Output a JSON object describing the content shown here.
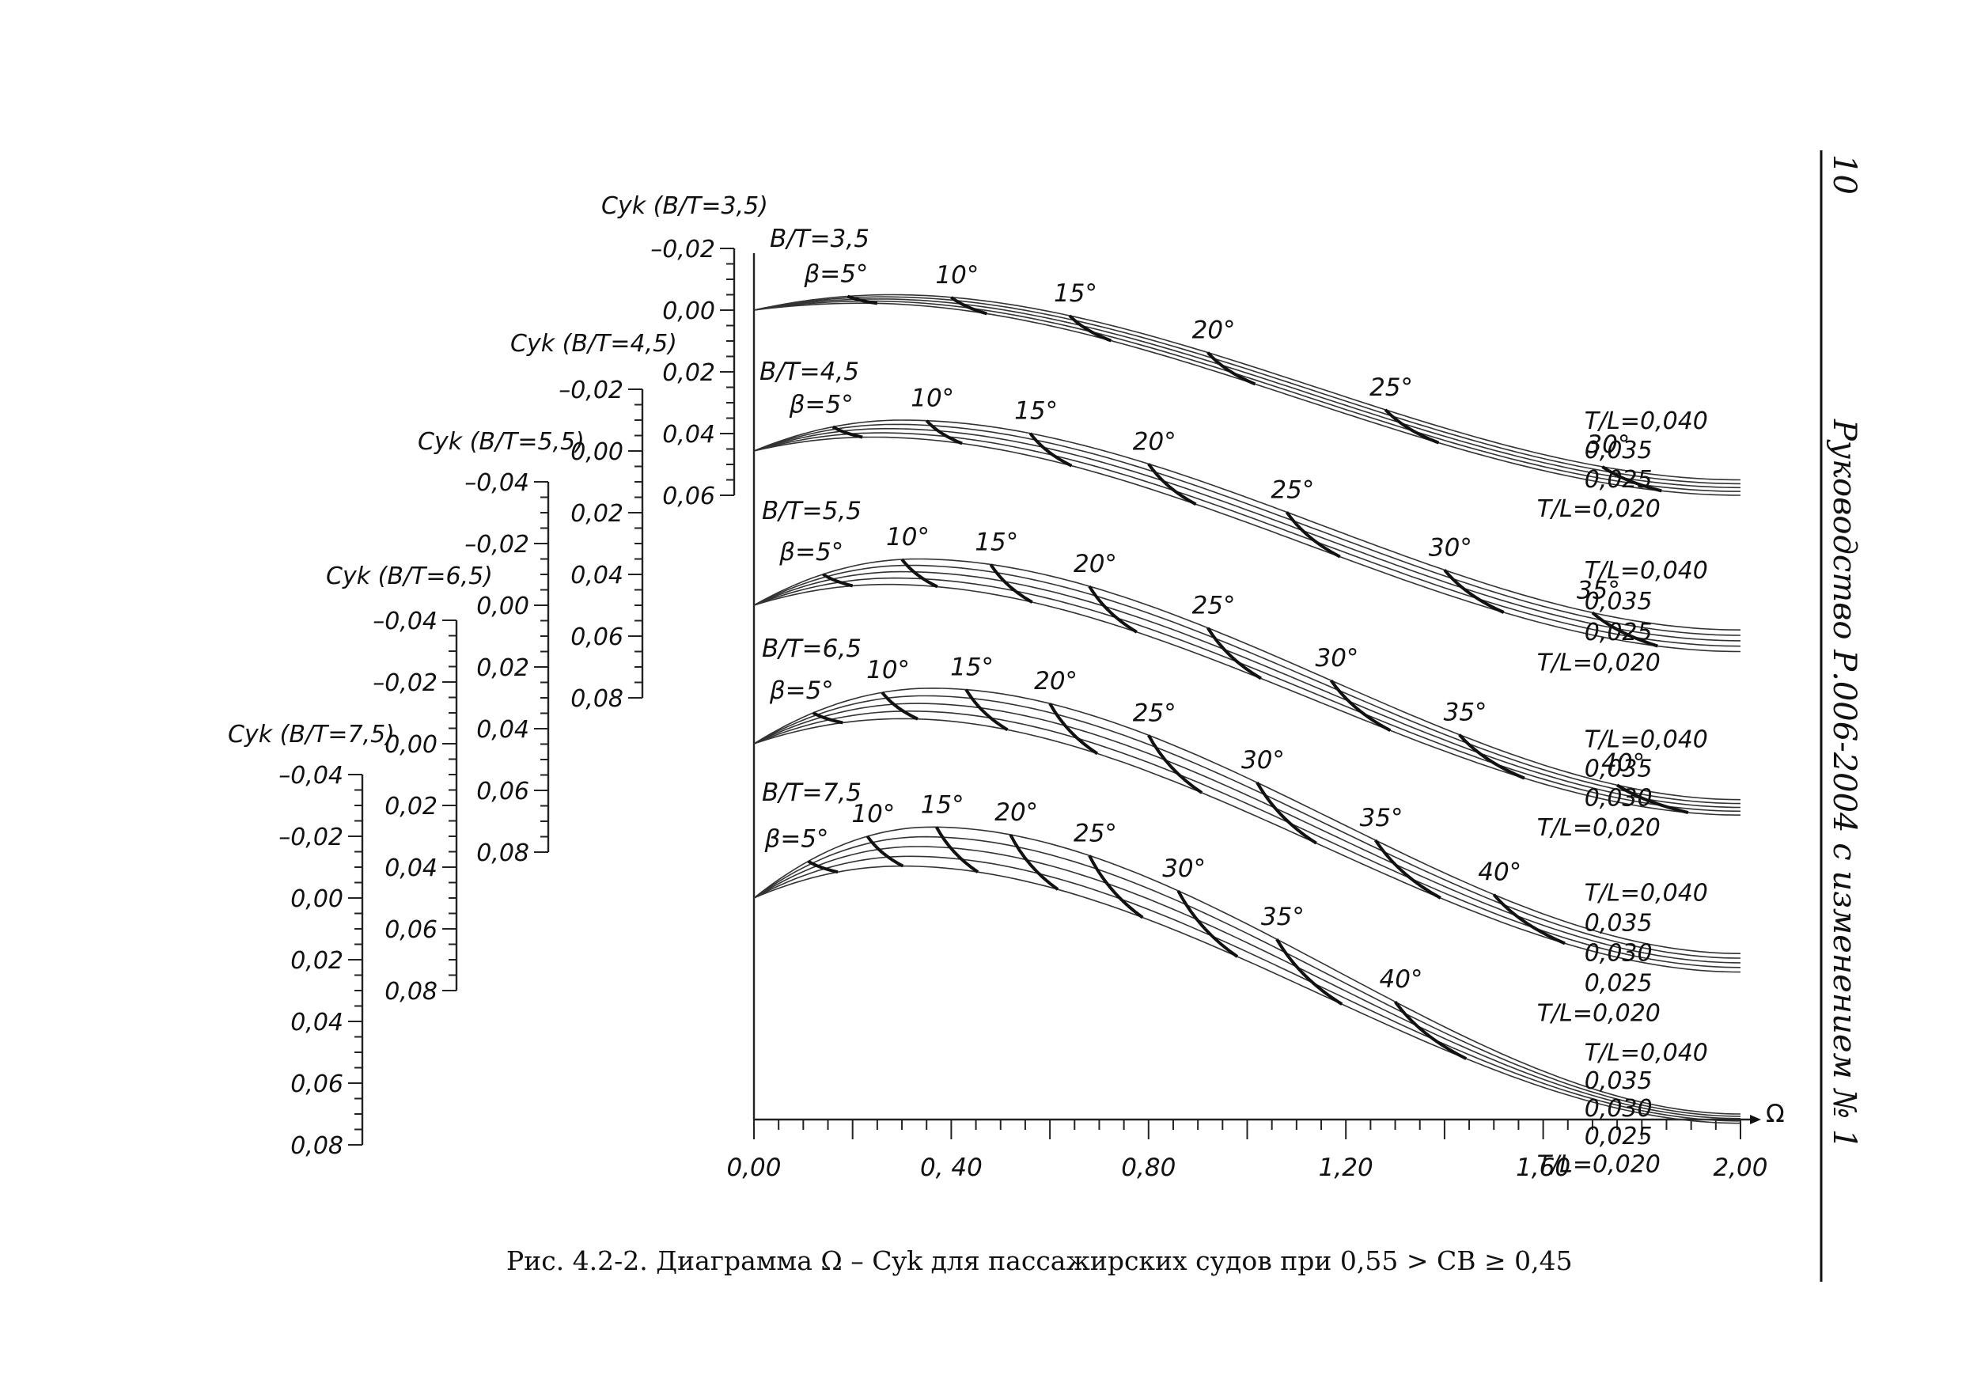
{
  "header": {
    "page_number": "10",
    "running_title": "Руководство Р.006-2004 с изменением № 1"
  },
  "caption": {
    "text": "Рис. 4.2-2. Диаграмма Ω –  Cyk для пассажирских судов при 0,55 > CB ≥ 0,45"
  },
  "chart_data": {
    "type": "line",
    "title": "",
    "xlabel": "Ω",
    "xlim": [
      0.0,
      2.0
    ],
    "x_ticks": [
      "0,00",
      "0, 40",
      "0,80",
      "1,20",
      "1,60",
      "2,00"
    ],
    "y_axes": [
      {
        "label": "Cyk (B/T=3,5)",
        "ticks": [
          "-0,02",
          "0,00",
          "0,02",
          "0,04",
          "0,06"
        ]
      },
      {
        "label": "Cyk (B/T=4,5)",
        "ticks": [
          "-0,02",
          "0,00",
          "0,02",
          "0,04",
          "0,06",
          "0,08"
        ]
      },
      {
        "label": "Cyk (B/T=5,5)",
        "ticks": [
          "-0,04",
          "-0,02",
          "0,00",
          "0,02",
          "0,04",
          "0,06",
          "0,08"
        ]
      },
      {
        "label": "Cyk (B/T=6,5)",
        "ticks": [
          "-0,04",
          "-0,02",
          "0,00",
          "0,02",
          "0,04",
          "0,06",
          "0,08"
        ]
      },
      {
        "label": "Cyk (B/T=7,5)",
        "ticks": [
          "-0,04",
          "-0,02",
          "0,00",
          "0,02",
          "0,04",
          "0,06",
          "0,08"
        ]
      }
    ],
    "groups": [
      {
        "bt_label": "B/T=3,5",
        "beta_prefix": "β=5°",
        "y_unit_offset": 0.0,
        "peak_x": 0.28,
        "peak_y": -0.005,
        "end_y_low": 0.055,
        "end_y_high": 0.06,
        "beta_x": [
          0.19,
          0.4,
          0.64,
          0.92,
          1.28,
          1.72
        ],
        "beta_labels": [
          "β=5°",
          "10°",
          "15°",
          "20°",
          "25°",
          "30°"
        ],
        "tl_labels": [
          "T/L=0,040",
          "0,035",
          "0,025",
          "T/L=0,020"
        ]
      },
      {
        "bt_label": "B/T=4,5",
        "beta_prefix": "β=5°",
        "y_unit_offset": 0.0,
        "peak_x": 0.3,
        "peak_y": -0.01,
        "end_y_low": 0.058,
        "end_y_high": 0.065,
        "beta_x": [
          0.16,
          0.35,
          0.56,
          0.8,
          1.08,
          1.4,
          1.7
        ],
        "beta_labels": [
          "β=5°",
          "10°",
          "15°",
          "20°",
          "25°",
          "30°",
          "35°"
        ],
        "tl_labels": [
          "T/L=0,040",
          "0,035",
          "0,025",
          "T/L=0,020"
        ]
      },
      {
        "bt_label": "B/T=5,5",
        "beta_prefix": "β=5°",
        "y_unit_offset": 0.0,
        "peak_x": 0.33,
        "peak_y": -0.015,
        "end_y_low": 0.063,
        "end_y_high": 0.068,
        "beta_x": [
          0.14,
          0.3,
          0.48,
          0.68,
          0.92,
          1.17,
          1.43,
          1.75
        ],
        "beta_labels": [
          "β=5°",
          "10°",
          "15°",
          "20°",
          "25°",
          "30°",
          "35°",
          "40°"
        ],
        "tl_labels": [
          "T/L=0,040",
          "0,035",
          "0,030",
          "T/L=0,020"
        ]
      },
      {
        "bt_label": "B/T=6,5",
        "beta_prefix": "β=5°",
        "y_unit_offset": 0.0,
        "peak_x": 0.36,
        "peak_y": -0.018,
        "end_y_low": 0.068,
        "end_y_high": 0.074,
        "beta_x": [
          0.12,
          0.26,
          0.43,
          0.6,
          0.8,
          1.02,
          1.26,
          1.5
        ],
        "beta_labels": [
          "β=5°",
          "10°",
          "15°",
          "20°",
          "25°",
          "30°",
          "35°",
          "40°"
        ],
        "tl_labels": [
          "T/L=0,040",
          "0,035",
          "0,030",
          "0,025",
          "T/L=0,020"
        ]
      },
      {
        "bt_label": "B/T=7,5",
        "beta_prefix": "β=5°",
        "y_unit_offset": 0.0,
        "peak_x": 0.36,
        "peak_y": -0.023,
        "end_y_low": 0.07,
        "end_y_high": 0.073,
        "beta_x": [
          0.11,
          0.23,
          0.37,
          0.52,
          0.68,
          0.86,
          1.06,
          1.3
        ],
        "beta_labels": [
          "β=5°",
          "10°",
          "15°",
          "20°",
          "25°",
          "30°",
          "35°",
          "40°"
        ],
        "tl_labels": [
          "T/L=0,040",
          "0,035",
          "0,030",
          "0,025",
          "T/L=0,020"
        ]
      }
    ]
  }
}
